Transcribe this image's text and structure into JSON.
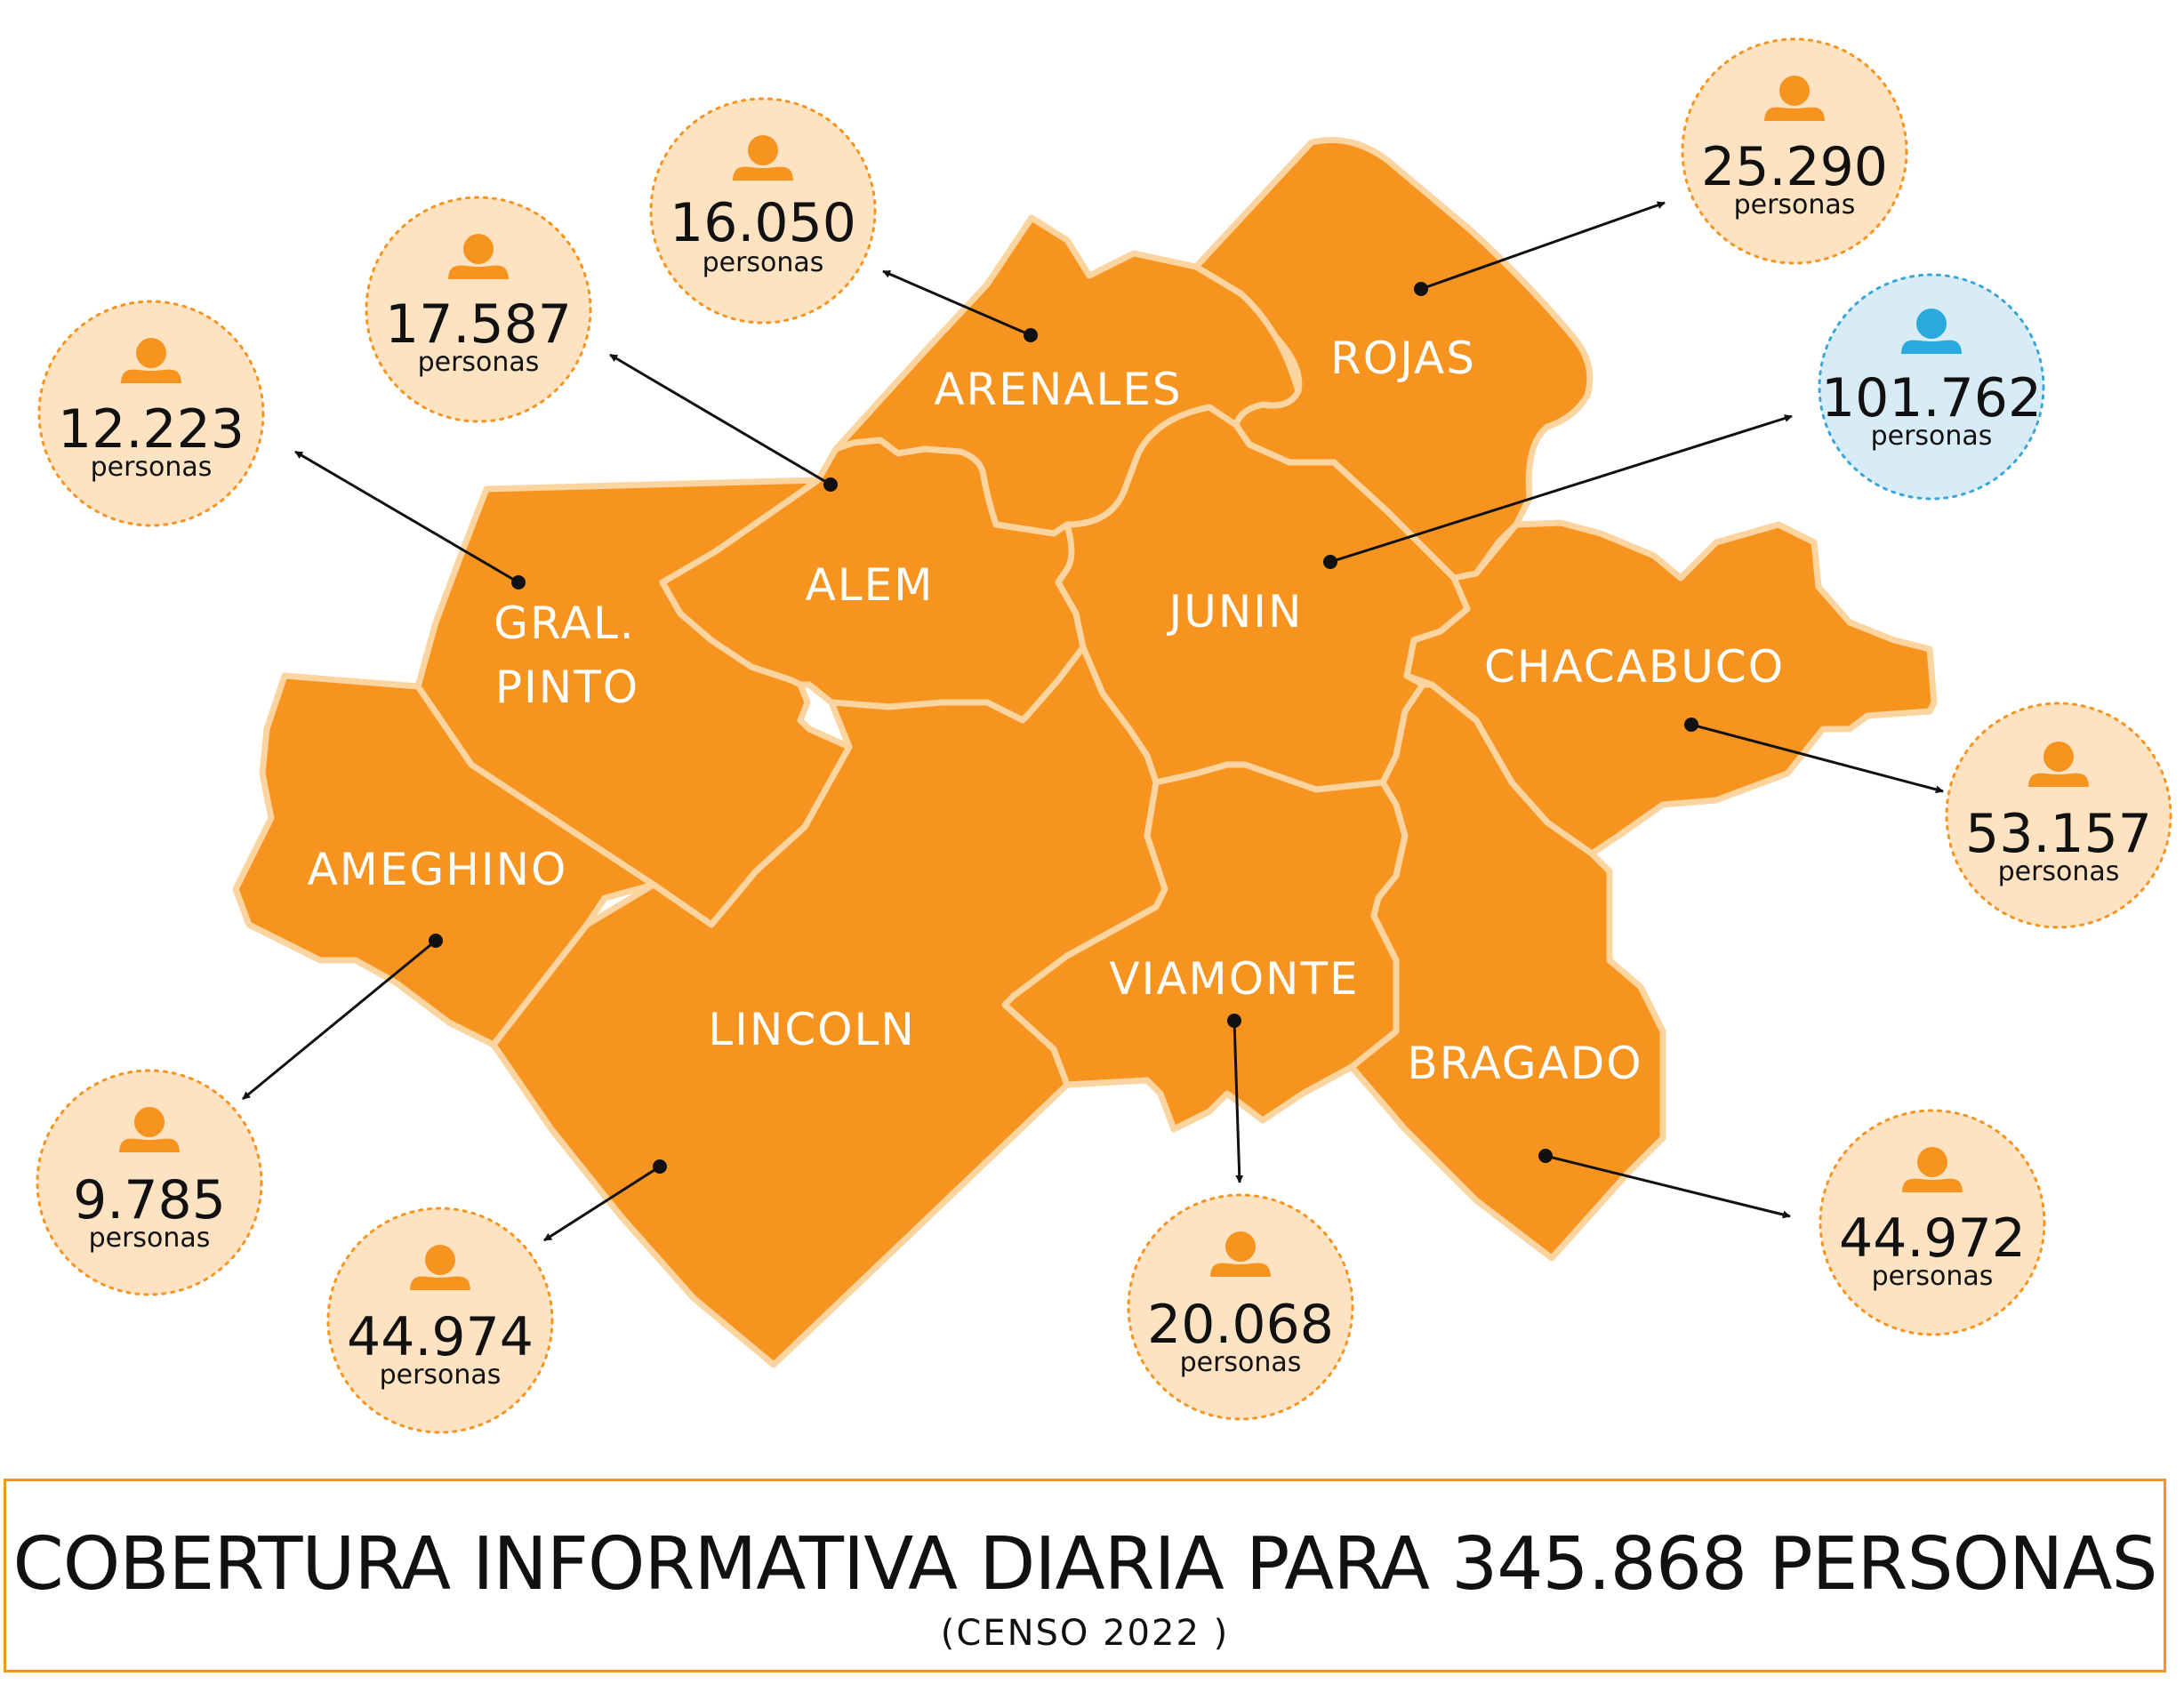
{
  "colors": {
    "region_fill": "#f6941f",
    "region_border": "#fbd4a0",
    "bubble_fill": "#fde3c2",
    "bubble_highlight_fill": "#d7ecf7",
    "highlight_icon": "#2aa9df",
    "banner_border": "#f6941f"
  },
  "icons": {
    "person": "person-icon"
  },
  "districts": {
    "arenales": {
      "label": "ARENALES",
      "population": "16.050",
      "unit": "personas"
    },
    "rojas": {
      "label": "ROJAS",
      "population": "25.290",
      "unit": "personas"
    },
    "alem": {
      "label": "ALEM",
      "population": "17.587",
      "unit": "personas"
    },
    "gral_pinto": {
      "label_line1": "GRAL.",
      "label_line2": "PINTO",
      "population": "12.223",
      "unit": "personas"
    },
    "junin": {
      "label": "JUNIN",
      "population": "101.762",
      "unit": "personas",
      "highlighted": true
    },
    "chacabuco": {
      "label": "CHACABUCO",
      "population": "53.157",
      "unit": "personas"
    },
    "ameghino": {
      "label": "AMEGHINO",
      "population": "9.785",
      "unit": "personas"
    },
    "lincoln": {
      "label": "LINCOLN",
      "population": "44.974",
      "unit": "personas"
    },
    "viamonte": {
      "label": "VIAMONTE",
      "population": "20.068",
      "unit": "personas"
    },
    "bragado": {
      "label": "BRAGADO",
      "population": "44.972",
      "unit": "personas"
    }
  },
  "banner": {
    "title": "COBERTURA INFORMATIVA DIARIA PARA 345.868 PERSONAS",
    "subtitle": "(CENSO 2022 )"
  }
}
